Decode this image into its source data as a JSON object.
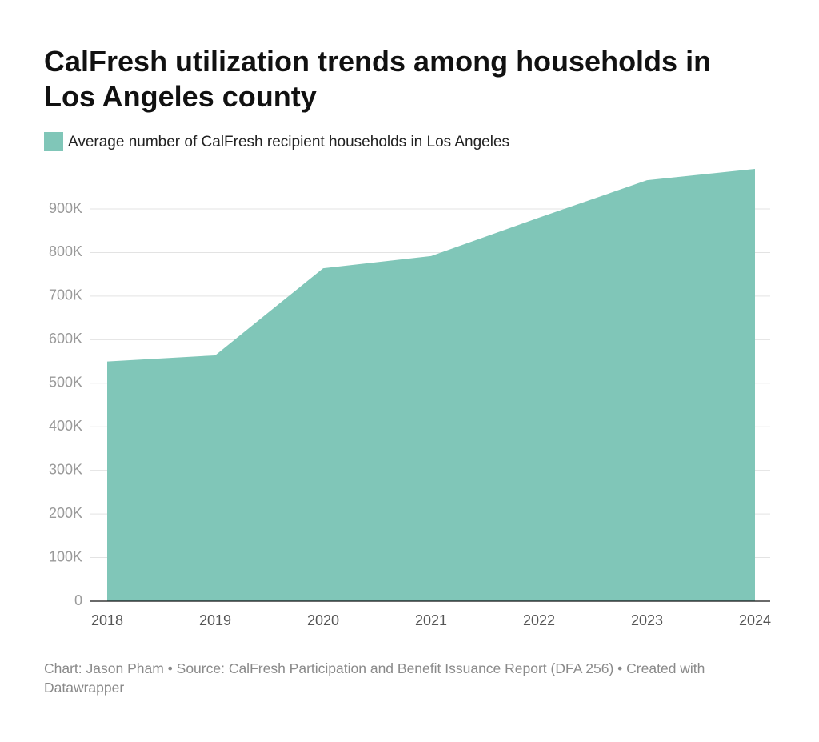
{
  "chart_data": {
    "type": "area",
    "title": "CalFresh utilization trends among households in Los Angeles county",
    "categories": [
      "2018",
      "2019",
      "2020",
      "2021",
      "2022",
      "2023",
      "2024"
    ],
    "series": [
      {
        "name": "Average number of CalFresh recipient households in Los Angeles",
        "color": "#80c6b8",
        "values": [
          550000,
          564000,
          764000,
          792000,
          880000,
          966000,
          992000
        ]
      }
    ],
    "ylim": [
      0,
      1000000
    ],
    "yticks": [
      0,
      {
        "value": 100000,
        "label": "100K"
      },
      {
        "value": 200000,
        "label": "200K"
      },
      {
        "value": 300000,
        "label": "300K"
      },
      {
        "value": 400000,
        "label": "400K"
      },
      {
        "value": 500000,
        "label": "500K"
      },
      {
        "value": 600000,
        "label": "600K"
      },
      {
        "value": 700000,
        "label": "700K"
      },
      {
        "value": 800000,
        "label": "800K"
      },
      {
        "value": 900000,
        "label": "900K"
      }
    ],
    "grid": true,
    "footer": "Chart: Jason Pham • Source: CalFresh Participation and Benefit Issuance Report (DFA 256) • Created with Datawrapper"
  }
}
